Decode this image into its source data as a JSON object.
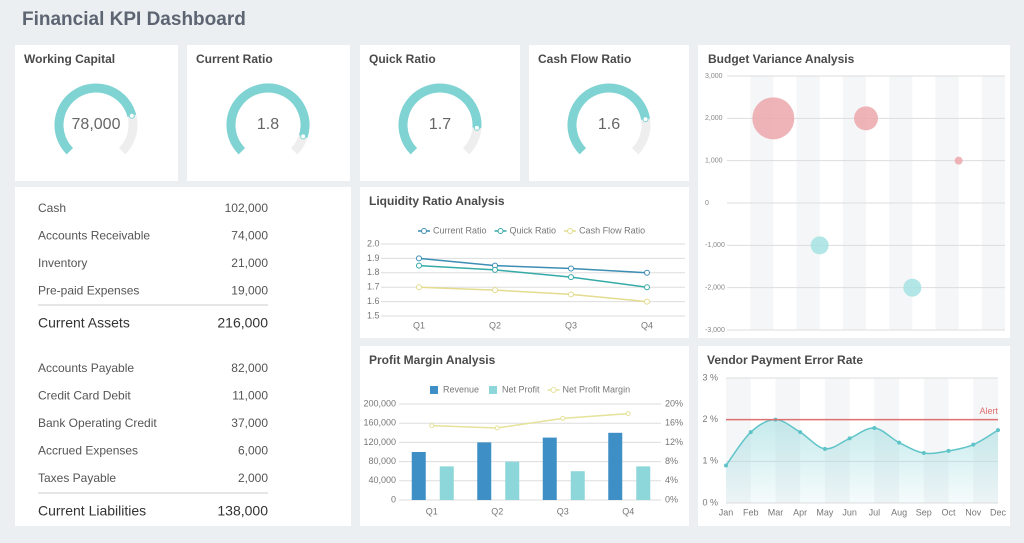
{
  "title": "Financial KPI Dashboard",
  "balance": {
    "assets": {
      "rows": [
        [
          "Cash",
          "102,000"
        ],
        [
          "Accounts Receivable",
          "74,000"
        ],
        [
          "Inventory",
          "21,000"
        ],
        [
          "Pre-paid Expenses",
          "19,000"
        ]
      ],
      "total": [
        "Current Assets",
        "216,000"
      ]
    },
    "liabilities": {
      "rows": [
        [
          "Accounts Payable",
          "82,000"
        ],
        [
          "Credit Card Debit",
          "11,000"
        ],
        [
          "Bank Operating Credit",
          "37,000"
        ],
        [
          "Accrued Expenses",
          "6,000"
        ],
        [
          "Taxes Payable",
          "2,000"
        ]
      ],
      "total": [
        "Current Liabilities",
        "138,000"
      ]
    }
  },
  "chart_data": [
    {
      "type": "gauge",
      "title": "Working Capital",
      "value": 78000,
      "value_labels": "78,000",
      "ylim": [
        0,
        100000
      ],
      "color": "#7fd3d3"
    },
    {
      "type": "gauge",
      "title": "Current Ratio",
      "value": 1.8,
      "ylim": [
        0,
        2
      ],
      "color": "#7fd3d3"
    },
    {
      "type": "gauge",
      "title": "Quick Ratio",
      "value": 1.7,
      "ylim": [
        0,
        2
      ],
      "color": "#7fd3d3"
    },
    {
      "type": "gauge",
      "title": "Cash Flow Ratio",
      "value": 1.6,
      "ylim": [
        0,
        2
      ],
      "color": "#7fd3d3"
    },
    {
      "type": "bubble",
      "title": "Budget Variance Analysis",
      "x": [
        2,
        6,
        10,
        4,
        8
      ],
      "values": [
        2000,
        2000,
        1000,
        -1000,
        -2000
      ],
      "sizes": [
        441,
        144,
        16,
        81,
        81
      ],
      "colors": {
        "positive": "#eba7ab",
        "negative": "#a6e2e3"
      },
      "xlim": [
        0,
        12
      ],
      "ylim": [
        -3000,
        3000
      ],
      "yticks": [
        {
          "value": 3000,
          "label": "3,000"
        },
        {
          "value": 2000,
          "label": "2,000"
        },
        {
          "value": 1000,
          "label": "1,000"
        },
        0,
        {
          "value": -1000,
          "label": "-1,000"
        },
        {
          "value": -2000,
          "label": "-2,000"
        },
        {
          "value": -3000,
          "label": "-3,000"
        }
      ],
      "grid": true
    },
    {
      "type": "line",
      "title": "Liquidity Ratio Analysis",
      "categories": [
        "Q1",
        "Q2",
        "Q3",
        "Q4"
      ],
      "series": [
        {
          "name": "Current Ratio",
          "color": "#3d8db5",
          "values": [
            1.9,
            1.85,
            1.83,
            1.8
          ]
        },
        {
          "name": "Quick Ratio",
          "color": "#35aaa6",
          "values": [
            1.85,
            1.82,
            1.77,
            1.7
          ]
        },
        {
          "name": "Cash Flow Ratio",
          "color": "#e3dc8f",
          "values": [
            1.7,
            1.68,
            1.65,
            1.6
          ]
        }
      ],
      "ylim": [
        1.5,
        2.0
      ],
      "yticks": [
        1.5,
        1.6,
        1.7,
        1.8,
        1.9,
        {
          "value": 2,
          "label": "2.0"
        }
      ],
      "grid": true
    },
    {
      "type": "bar",
      "title": "Profit Margin Analysis",
      "categories": [
        "Q1",
        "Q2",
        "Q3",
        "Q4"
      ],
      "series": [
        {
          "name": "Revenue",
          "color": "#3d8fc6",
          "values": [
            100000,
            120000,
            130000,
            140000
          ]
        },
        {
          "name": "Net Profit",
          "color": "#8dd6d9",
          "values": [
            70000,
            80000,
            60000,
            70000
          ]
        },
        {
          "name": "Net Profit Margin",
          "color": "#e6e29a",
          "axis": "y2",
          "values": [
            15.5,
            15,
            17,
            18
          ]
        }
      ],
      "ylim": [
        0,
        200000
      ],
      "yticks": [
        0,
        {
          "value": 40000,
          "label": "40,000"
        },
        {
          "value": 80000,
          "label": "80,000"
        },
        {
          "value": 120000,
          "label": "120,000"
        },
        {
          "value": 160000,
          "label": "160,000"
        },
        {
          "value": 200000,
          "label": "200,000"
        }
      ],
      "y2lim": [
        0,
        20
      ],
      "y2ticks": [
        {
          "value": 0,
          "label": "0%"
        },
        {
          "value": 4,
          "label": "4%"
        },
        {
          "value": 8,
          "label": "8%"
        },
        {
          "value": 12,
          "label": "12%"
        },
        {
          "value": 16,
          "label": "16%"
        },
        {
          "value": 20,
          "label": "20%"
        }
      ],
      "grid": true
    },
    {
      "type": "area",
      "title": "Vendor Payment Error Rate",
      "categories": [
        "Jan",
        "Feb",
        "Mar",
        "Apr",
        "May",
        "Jun",
        "Jul",
        "Aug",
        "Sep",
        "Oct",
        "Nov",
        "Dec"
      ],
      "values": [
        0.9,
        1.7,
        2.0,
        1.7,
        1.3,
        1.55,
        1.8,
        1.45,
        1.2,
        1.25,
        1.4,
        1.75
      ],
      "color": "#5fc4c8",
      "alert": {
        "value": 2,
        "label": "Alert",
        "color": "#e07070"
      },
      "ylim": [
        0,
        3
      ],
      "yticks": [
        {
          "value": 0,
          "label": "0 %"
        },
        {
          "value": 1,
          "label": "1 %"
        },
        {
          "value": 2,
          "label": "2 %"
        },
        {
          "value": 3,
          "label": "3 %"
        }
      ],
      "grid": true
    }
  ]
}
